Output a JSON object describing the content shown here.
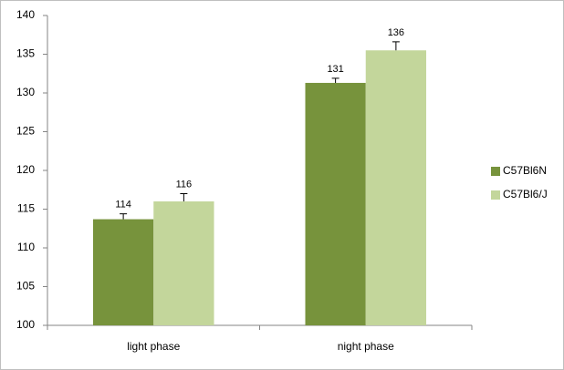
{
  "chart_data": {
    "type": "bar",
    "categories": [
      "light phase",
      "night phase"
    ],
    "series": [
      {
        "name": "C57Bl6N",
        "color": "#77933c",
        "values": [
          113.7,
          131.3
        ],
        "value_labels": [
          "114",
          "131"
        ],
        "errors": [
          0.7,
          0.6
        ]
      },
      {
        "name": "C57Bl6/J",
        "color": "#c3d69b",
        "values": [
          116.0,
          135.5
        ],
        "value_labels": [
          "116",
          "136"
        ],
        "errors": [
          1.0,
          1.1
        ]
      }
    ],
    "ylim": [
      100,
      140
    ],
    "yticks": [
      100,
      105,
      110,
      115,
      120,
      125,
      130,
      135,
      140
    ],
    "grid": false,
    "legend": "right"
  }
}
